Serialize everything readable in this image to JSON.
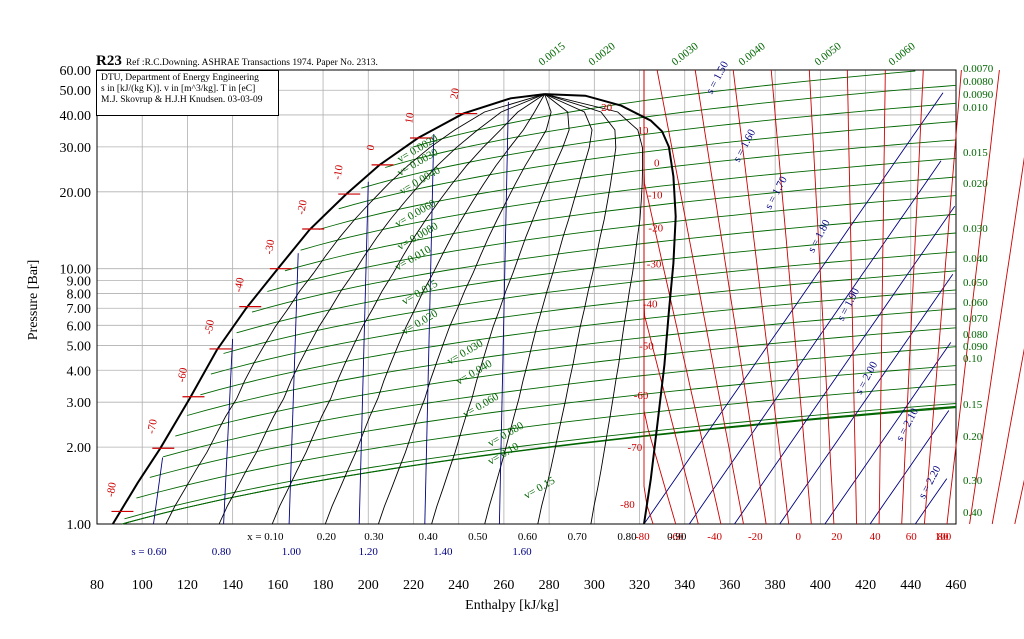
{
  "chart_data": {
    "type": "line",
    "title": "R23",
    "subtitle": "Ref :R.C.Downing. ASHRAE Transactions 1974. Paper No. 2313.",
    "info_lines": [
      "DTU, Department of Energy Engineering",
      "s in [kJ/(kg K)]. v in [m^3/kg]. T in [eC]",
      "M.J. Skovrup & H.J.H Knudsen. 03-03-09"
    ],
    "xlabel": "Enthalpy [kJ/kg]",
    "ylabel": "Pressure [Bar]",
    "xlim": [
      80,
      460
    ],
    "ylim": [
      1.0,
      60.0
    ],
    "y_scale": "log",
    "x_ticks": [
      "80",
      "100",
      "120",
      "140",
      "160",
      "180",
      "200",
      "220",
      "240",
      "260",
      "280",
      "300",
      "320",
      "340",
      "360",
      "380",
      "400",
      "420",
      "440",
      "460"
    ],
    "y_ticks": [
      "1.00",
      "2.00",
      "3.00",
      "4.00",
      "5.00",
      "6.00",
      "7.00",
      "8.00",
      "9.00",
      "10.00",
      "20.00",
      "30.00",
      "40.00",
      "50.00",
      "60.00"
    ],
    "grid": true,
    "critical_point": {
      "h": 278,
      "p": 48.3
    },
    "saturated_liquid": [
      [
        87,
        1.0
      ],
      [
        98,
        1.45
      ],
      [
        108,
        1.98
      ],
      [
        121,
        3.1
      ],
      [
        133,
        4.8
      ],
      [
        146,
        7.0
      ],
      [
        160,
        10.0
      ],
      [
        174,
        14.2
      ],
      [
        190,
        19.5
      ],
      [
        205,
        25.5
      ],
      [
        222,
        32.5
      ],
      [
        242,
        40.5
      ],
      [
        263,
        46.5
      ],
      [
        278,
        48.3
      ]
    ],
    "saturated_vapor": [
      [
        278,
        48.3
      ],
      [
        296,
        47.6
      ],
      [
        312,
        43.5
      ],
      [
        325,
        38.0
      ],
      [
        330,
        34.5
      ],
      [
        333,
        30.0
      ],
      [
        335,
        23.0
      ],
      [
        336,
        16.0
      ],
      [
        335,
        10.5
      ],
      [
        333,
        6.8
      ],
      [
        331,
        4.2
      ],
      [
        328,
        2.5
      ],
      [
        325,
        1.5
      ],
      [
        322,
        1.0
      ]
    ],
    "quality_labels": [
      "x = 0.10",
      "0.20",
      "0.30",
      "0.40",
      "0.50",
      "0.60",
      "0.70",
      "0.80",
      "0.90"
    ],
    "liquid_entropy_labels": [
      "s = 0.60",
      "0.80",
      "1.00",
      "1.20",
      "1.40",
      "1.60"
    ],
    "saturation_temperature_labels": [
      "-80",
      "-70",
      "-60",
      "-50",
      "-40",
      "-30",
      "-20",
      "-10",
      "0",
      "10",
      "20"
    ],
    "vapor_temperature_labels": [
      "20",
      "10",
      "0",
      "-10",
      "-20",
      "-30",
      "-40",
      "-50",
      "-60",
      "-70",
      "-80"
    ],
    "bottom_temperature_labels": [
      "-80",
      "-60",
      "-40",
      "-20",
      "0",
      "20",
      "40",
      "60",
      "80",
      "100"
    ],
    "vapor_entropy_labels": [
      "s = 1.50",
      "s = 1.60",
      "s = 1.70",
      "s = 1.80",
      "s = 1.90",
      "s = 2.00",
      "s = 2.10",
      "s = 2.20"
    ],
    "dome_volume_labels": [
      "v= 0.0020",
      "v= 0.0030",
      "v= 0.0040",
      "v= 0.0060",
      "v= 0.0080",
      "v= 0.010",
      "v= 0.015",
      "v= 0.020",
      "v= 0.030",
      "v= 0.040",
      "v= 0.060",
      "v= 0.080",
      "v= 0.10",
      "v= 0.15"
    ],
    "top_volume_labels": [
      "0.0015",
      "0.0020",
      "0.0030",
      "0.0040",
      "0.0050",
      "0.0060"
    ],
    "right_volume_labels": [
      "0.0070",
      "0.0080",
      "0.0090",
      "0.010",
      "0.015",
      "0.020",
      "0.030",
      "0.040",
      "0.050",
      "0.060",
      "0.070",
      "0.080",
      "0.090",
      "0.10",
      "0.15",
      "0.20",
      "0.30",
      "0.40"
    ],
    "colors": {
      "isotherm": "#cc0000",
      "isochore": "#006600",
      "isentrope": "#000080",
      "quality": "#000000",
      "saturation": "#000000",
      "grid": "#b0b0b0"
    }
  }
}
